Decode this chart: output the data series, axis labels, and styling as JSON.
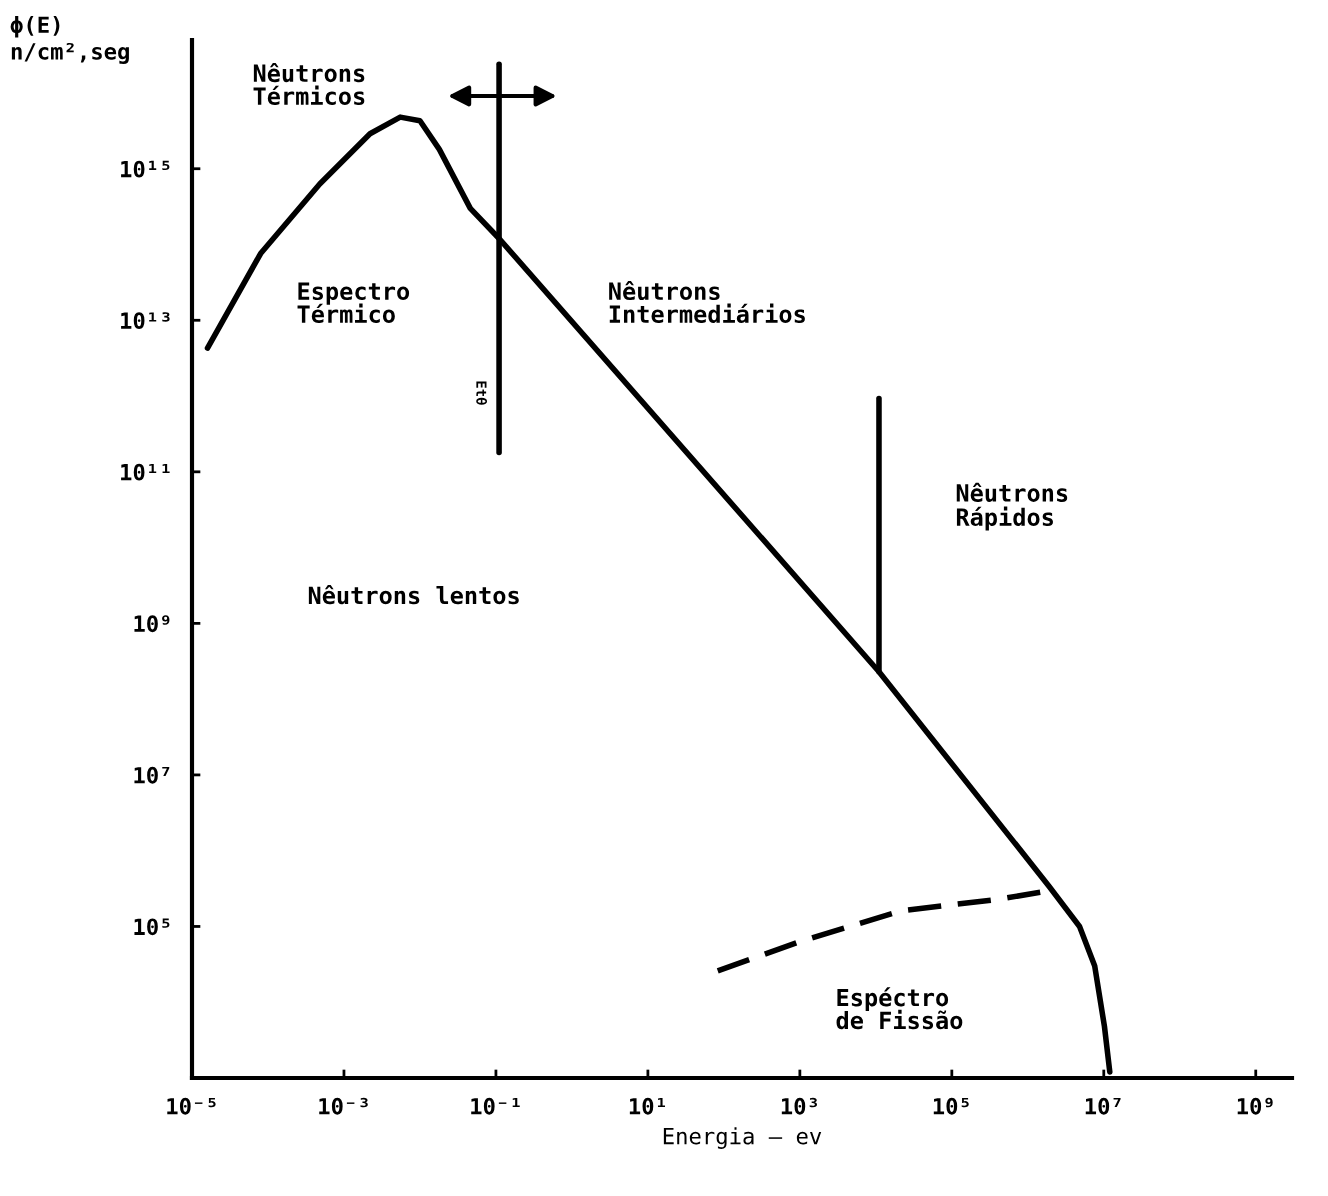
{
  "chart_data": {
    "type": "line",
    "xlabel": "Energia – ev",
    "ylabel": "ϕ(E)\nn/cm²,seg",
    "log": "xy",
    "xlim": [
      1e-05,
      3000000000.0
    ],
    "ylim": [
      1000.0,
      5e+16
    ],
    "xticks": [
      {
        "value": 1e-05,
        "label": "10⁻⁵"
      },
      {
        "value": 0.001,
        "label": "10⁻³"
      },
      {
        "value": 0.1,
        "label": "10⁻¹"
      },
      {
        "value": 10,
        "label": "10¹"
      },
      {
        "value": 1000.0,
        "label": "10³"
      },
      {
        "value": 100000.0,
        "label": "10⁵"
      },
      {
        "value": 10000000.0,
        "label": "10⁷"
      },
      {
        "value": 1000000000.0,
        "label": "10⁹"
      }
    ],
    "yticks": [
      {
        "value": 100000.0,
        "label": "10⁵"
      },
      {
        "value": 10000000.0,
        "label": "10⁷"
      },
      {
        "value": 1000000000.0,
        "label": "10⁹"
      },
      {
        "value": 100000000000.0,
        "label": "10¹¹"
      },
      {
        "value": 10000000000000.0,
        "label": "10¹³"
      },
      {
        "value": 1000000000000000.0,
        "label": "10¹⁵"
      }
    ],
    "grid": false,
    "marker": "none",
    "series": [
      {
        "color": "#000000",
        "line_style": "solid",
        "x": [
          1.6e-05,
          8e-05,
          0.00048,
          0.0022,
          0.0055,
          0.01,
          0.018,
          0.046,
          0.11,
          11000.0,
          1900000.0,
          4800000.0,
          7600000.0,
          10200000.0,
          12000000.0
        ],
        "values": [
          4300000000000.0,
          76000000000000.0,
          630000000000000.0,
          2900000000000000.0,
          4800000000000000.0,
          4300000000000000.0,
          1800000000000000.0,
          300000000000000.0,
          120000000000000.0,
          230000000.0,
          340000.0,
          100000.0,
          30000.0,
          4800.0,
          1200.0
        ]
      },
      {
        "color": "#000000",
        "line_style": "dashed",
        "x": [
          83,
          1000.0,
          21000.0,
          430000.0,
          1700000.0
        ],
        "values": [
          26000.0,
          63000.0,
          160000.0,
          230000.0,
          290000.0
        ]
      },
      {
        "color": "#000000",
        "line_style": "solid",
        "x": [
          0.11,
          0.11
        ],
        "values": [
          2.4e+16,
          180000000000.0
        ]
      },
      {
        "color": "#000000",
        "line_style": "solid",
        "x": [
          11000.0,
          11000.0
        ],
        "values": [
          930000000000.0,
          230000000.0
        ]
      }
    ],
    "annotations": [
      "Nêutrons\nTérmicos",
      "Espectro\nTérmico",
      "Nêutrons\nIntermediários",
      "Nêutrons\nRápidos",
      "Nêutrons lentos",
      "Espéctro\nde Fissão",
      "Etθ"
    ]
  }
}
